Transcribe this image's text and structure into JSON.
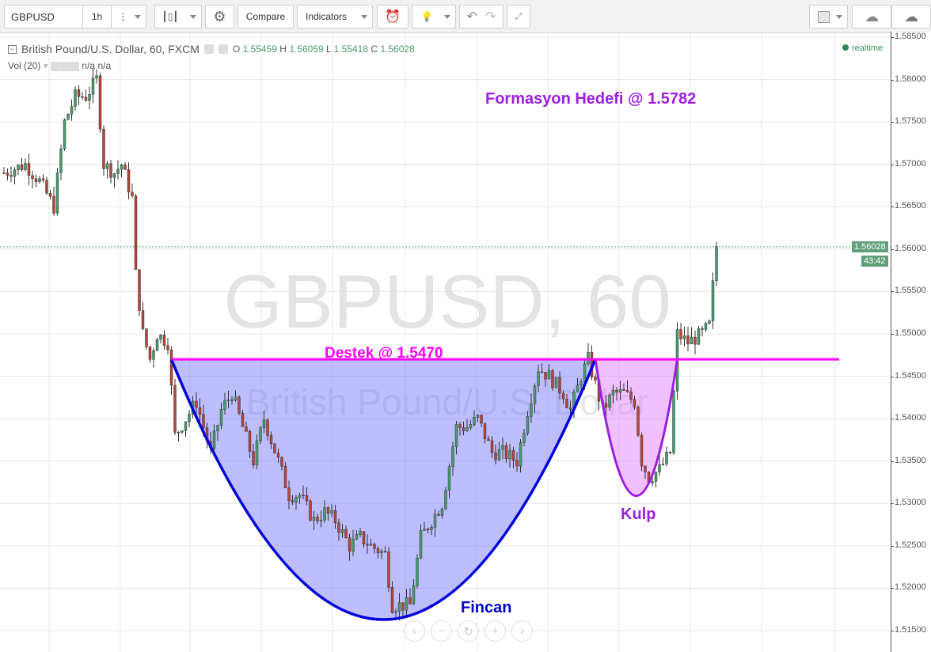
{
  "toolbar": {
    "symbol": "GBPUSD",
    "interval": "1h",
    "compare": "Compare",
    "indicators": "Indicators"
  },
  "legend": {
    "title": "British Pound/U.S. Dollar, 60, FXCM",
    "o_label": "O",
    "o": "1.55459",
    "h_label": "H",
    "h": "1.56059",
    "l_label": "L",
    "l": "1.55418",
    "c_label": "C",
    "c": "1.56028",
    "vol": "Vol (20)",
    "vol_values": "n/a n/a"
  },
  "realtime": "realtime",
  "watermark": {
    "line1": "GBPUSD, 60",
    "line2": "British Pound/U.S. Dollar"
  },
  "last_price": "1.56028",
  "countdown": "43:42",
  "colors": {
    "up": "#4a9a6e",
    "down": "#b5463a",
    "cup": "#0000dd",
    "handle": "#9b1fe0",
    "support": "#ff00ff"
  },
  "chart_data": {
    "type": "candlestick",
    "title": "British Pound/U.S. Dollar, 60, FXCM",
    "ylim": [
      1.513,
      1.5865
    ],
    "yticks": [
      "1.58500",
      "1.58000",
      "1.57500",
      "1.57000",
      "1.56500",
      "1.56000",
      "1.55500",
      "1.55000",
      "1.54500",
      "1.54000",
      "1.53500",
      "1.53000",
      "1.52500",
      "1.52000",
      "1.51500"
    ],
    "grid": true,
    "approx_close": {
      "bar": [
        0,
        6,
        10,
        14,
        17,
        20,
        23,
        26,
        28,
        31,
        33,
        36,
        37,
        39,
        41,
        43,
        46,
        48,
        51,
        54,
        58,
        61,
        64,
        67,
        70,
        73,
        77,
        80,
        83,
        87,
        90,
        93,
        97,
        100,
        103,
        107,
        109,
        111,
        114,
        117,
        120,
        123,
        127,
        130,
        133,
        137,
        140,
        144,
        147,
        150,
        153,
        157,
        159,
        162,
        164,
        168,
        171,
        174,
        177,
        179,
        181,
        184,
        187,
        189,
        192,
        196,
        198,
        200
      ],
      "price": [
        1.569,
        1.57,
        1.568,
        1.565,
        1.575,
        1.578,
        1.578,
        1.58,
        1.57,
        1.569,
        1.57,
        1.566,
        1.557,
        1.55,
        1.547,
        1.55,
        1.549,
        1.538,
        1.54,
        1.542,
        1.536,
        1.541,
        1.543,
        1.539,
        1.535,
        1.54,
        1.535,
        1.531,
        1.531,
        1.528,
        1.529,
        1.528,
        1.525,
        1.526,
        1.525,
        1.524,
        1.518,
        1.518,
        1.518,
        1.526,
        1.528,
        1.53,
        1.539,
        1.539,
        1.54,
        1.536,
        1.536,
        1.535,
        1.541,
        1.546,
        1.545,
        1.543,
        1.541,
        1.545,
        1.547,
        1.541,
        1.543,
        1.543,
        1.542,
        1.535,
        1.533,
        1.534,
        1.536,
        1.55,
        1.549,
        1.55,
        1.551,
        1.5603
      ]
    },
    "annotations": [
      {
        "type": "line",
        "label": "Destek @ 1.5470",
        "price": 1.547,
        "from_bar": 47,
        "to_bar": 234
      },
      {
        "type": "cup",
        "label": "Fincan",
        "from_bar": 47,
        "to_bar": 166,
        "top": 1.547,
        "bottom": 1.5163
      },
      {
        "type": "handle",
        "label": "Kulp",
        "from_bar": 166,
        "to_bar": 189,
        "top": 1.547,
        "bottom": 1.5309
      },
      {
        "type": "text",
        "label": "Formasyon Hedefi @ 1.5782"
      }
    ]
  }
}
